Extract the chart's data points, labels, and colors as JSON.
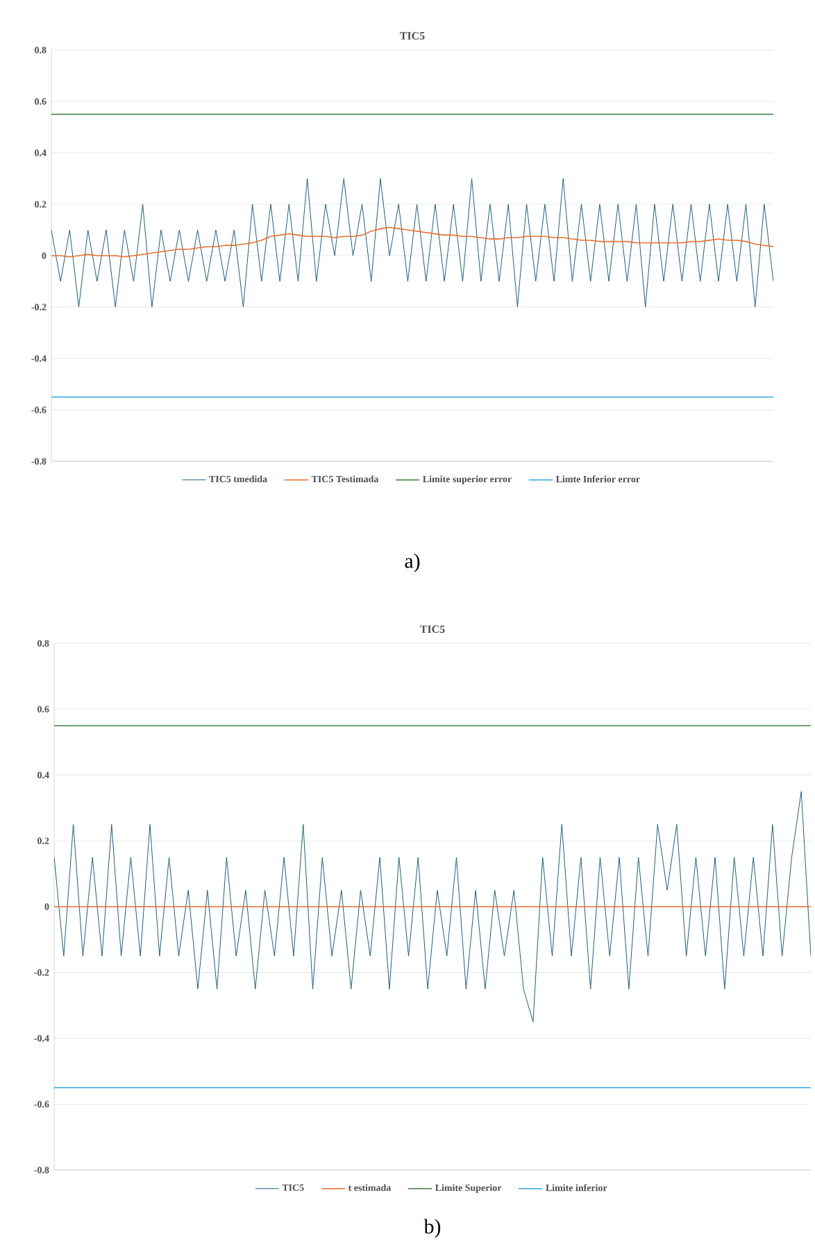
{
  "chart_data": [
    {
      "type": "line",
      "title": "TIC5",
      "categories": [
        null,
        null,
        null,
        null,
        null,
        null,
        null,
        null,
        null,
        null,
        null,
        null,
        null,
        null,
        null,
        null,
        null,
        null,
        null,
        null,
        null,
        null,
        null,
        null,
        null,
        null,
        null,
        null,
        null,
        null,
        null,
        null,
        null,
        null,
        null,
        null,
        null,
        null,
        null,
        null,
        null,
        null,
        null,
        null,
        null,
        null,
        null,
        null,
        null,
        null,
        null,
        null,
        null,
        null,
        null,
        null,
        null,
        null,
        null,
        null,
        null,
        null,
        null,
        null,
        null,
        null,
        null,
        null,
        null,
        null,
        null,
        null,
        null,
        null,
        null,
        null,
        null,
        null,
        null,
        null
      ],
      "ylim": [
        -0.8,
        0.8
      ],
      "yticks": [
        -0.8,
        -0.6,
        -0.4,
        -0.2,
        0,
        0.2,
        0.4,
        0.6,
        0.8
      ],
      "grid": "y",
      "legend": "bottom",
      "tick_labels": "y",
      "annotations": [
        "a)"
      ],
      "series": [
        {
          "name": "TIC5 tmedida",
          "color": "#1a5e84",
          "values": [
            0.1,
            -0.1,
            0.1,
            -0.2,
            0.1,
            -0.1,
            0.1,
            -0.2,
            0.1,
            -0.1,
            0.2,
            -0.2,
            0.1,
            -0.1,
            0.1,
            -0.1,
            0.1,
            -0.1,
            0.1,
            -0.1,
            0.1,
            -0.2,
            0.2,
            -0.1,
            0.2,
            -0.1,
            0.2,
            -0.1,
            0.3,
            -0.1,
            0.2,
            0.0,
            0.3,
            0.0,
            0.2,
            -0.1,
            0.3,
            0.0,
            0.2,
            -0.1,
            0.2,
            -0.1,
            0.2,
            -0.1,
            0.2,
            -0.1,
            0.3,
            -0.1,
            0.2,
            -0.1,
            0.2,
            -0.2,
            0.2,
            -0.1,
            0.2,
            -0.1,
            0.3,
            -0.1,
            0.2,
            -0.1,
            0.2,
            -0.1,
            0.2,
            -0.1,
            0.2,
            -0.2,
            0.2,
            -0.1,
            0.2,
            -0.1,
            0.2,
            -0.1,
            0.2,
            -0.1,
            0.2,
            -0.1,
            0.2,
            -0.2,
            0.2,
            -0.1
          ]
        },
        {
          "name": "TIC5 Testimada",
          "color": "#e8702a",
          "values": [
            0,
            0,
            -0.005,
            0,
            0.005,
            0,
            0,
            0,
            -0.005,
            0,
            0.005,
            0.01,
            0.015,
            0.02,
            0.025,
            0.025,
            0.03,
            0.035,
            0.035,
            0.04,
            0.04,
            0.045,
            0.05,
            0.06,
            0.075,
            0.08,
            0.085,
            0.08,
            0.075,
            0.075,
            0.075,
            0.07,
            0.075,
            0.075,
            0.08,
            0.095,
            0.105,
            0.11,
            0.105,
            0.1,
            0.095,
            0.09,
            0.085,
            0.08,
            0.08,
            0.075,
            0.075,
            0.07,
            0.065,
            0.065,
            0.07,
            0.07,
            0.075,
            0.075,
            0.075,
            0.07,
            0.07,
            0.065,
            0.06,
            0.06,
            0.055,
            0.055,
            0.055,
            0.055,
            0.05,
            0.05,
            0.05,
            0.05,
            0.05,
            0.05,
            0.055,
            0.055,
            0.06,
            0.065,
            0.06,
            0.06,
            0.055,
            0.045,
            0.04,
            0.035
          ]
        },
        {
          "name": "Limite superior error",
          "color": "#3a7d3a",
          "values": [
            0.55,
            0.55,
            0.55,
            0.55,
            0.55,
            0.55,
            0.55,
            0.55,
            0.55,
            0.55,
            0.55,
            0.55,
            0.55,
            0.55,
            0.55,
            0.55,
            0.55,
            0.55,
            0.55,
            0.55,
            0.55,
            0.55,
            0.55,
            0.55,
            0.55,
            0.55,
            0.55,
            0.55,
            0.55,
            0.55,
            0.55,
            0.55,
            0.55,
            0.55,
            0.55,
            0.55,
            0.55,
            0.55,
            0.55,
            0.55,
            0.55,
            0.55,
            0.55,
            0.55,
            0.55,
            0.55,
            0.55,
            0.55,
            0.55,
            0.55,
            0.55,
            0.55,
            0.55,
            0.55,
            0.55,
            0.55,
            0.55,
            0.55,
            0.55,
            0.55,
            0.55,
            0.55,
            0.55,
            0.55,
            0.55,
            0.55,
            0.55,
            0.55,
            0.55,
            0.55,
            0.55,
            0.55,
            0.55,
            0.55,
            0.55,
            0.55,
            0.55,
            0.55,
            0.55,
            0.55
          ]
        },
        {
          "name": "Limte Inferior error",
          "color": "#2aa8e0",
          "values": [
            -0.55,
            -0.55,
            -0.55,
            -0.55,
            -0.55,
            -0.55,
            -0.55,
            -0.55,
            -0.55,
            -0.55,
            -0.55,
            -0.55,
            -0.55,
            -0.55,
            -0.55,
            -0.55,
            -0.55,
            -0.55,
            -0.55,
            -0.55,
            -0.55,
            -0.55,
            -0.55,
            -0.55,
            -0.55,
            -0.55,
            -0.55,
            -0.55,
            -0.55,
            -0.55,
            -0.55,
            -0.55,
            -0.55,
            -0.55,
            -0.55,
            -0.55,
            -0.55,
            -0.55,
            -0.55,
            -0.55,
            -0.55,
            -0.55,
            -0.55,
            -0.55,
            -0.55,
            -0.55,
            -0.55,
            -0.55,
            -0.55,
            -0.55,
            -0.55,
            -0.55,
            -0.55,
            -0.55,
            -0.55,
            -0.55,
            -0.55,
            -0.55,
            -0.55,
            -0.55,
            -0.55,
            -0.55,
            -0.55,
            -0.55,
            -0.55,
            -0.55,
            -0.55,
            -0.55,
            -0.55,
            -0.55,
            -0.55,
            -0.55,
            -0.55,
            -0.55,
            -0.55,
            -0.55,
            -0.55,
            -0.55,
            -0.55,
            -0.55
          ]
        }
      ]
    },
    {
      "type": "line",
      "title": "TIC5",
      "categories": [
        null,
        null,
        null,
        null,
        null,
        null,
        null,
        null,
        null,
        null,
        null,
        null,
        null,
        null,
        null,
        null,
        null,
        null,
        null,
        null,
        null,
        null,
        null,
        null,
        null,
        null,
        null,
        null,
        null,
        null,
        null,
        null,
        null,
        null,
        null,
        null,
        null,
        null,
        null,
        null,
        null,
        null,
        null,
        null,
        null,
        null,
        null,
        null,
        null,
        null,
        null,
        null,
        null,
        null,
        null,
        null,
        null,
        null,
        null,
        null,
        null,
        null,
        null,
        null,
        null,
        null,
        null,
        null,
        null,
        null,
        null,
        null,
        null,
        null,
        null,
        null,
        null,
        null,
        null,
        null
      ],
      "ylim": [
        -0.8,
        0.8
      ],
      "yticks": [
        -0.8,
        -0.6,
        -0.4,
        -0.2,
        0,
        0.2,
        0.4,
        0.6,
        0.8
      ],
      "grid": "y",
      "legend": "bottom",
      "tick_labels": "y",
      "annotations": [
        "b)"
      ],
      "series": [
        {
          "name": "TIC5",
          "color": "#1a5e84",
          "values": [
            0.15,
            -0.15,
            0.25,
            -0.15,
            0.15,
            -0.15,
            0.25,
            -0.15,
            0.15,
            -0.15,
            0.25,
            -0.15,
            0.15,
            -0.15,
            0.05,
            -0.25,
            0.05,
            -0.25,
            0.15,
            -0.15,
            0.05,
            -0.25,
            0.05,
            -0.15,
            0.15,
            -0.15,
            0.25,
            -0.25,
            0.15,
            -0.15,
            0.05,
            -0.25,
            0.05,
            -0.15,
            0.15,
            -0.25,
            0.15,
            -0.15,
            0.15,
            -0.25,
            0.05,
            -0.15,
            0.15,
            -0.25,
            0.05,
            -0.25,
            0.05,
            -0.15,
            0.05,
            -0.25,
            -0.35,
            0.15,
            -0.15,
            0.25,
            -0.15,
            0.15,
            -0.25,
            0.15,
            -0.15,
            0.15,
            -0.25,
            0.15,
            -0.15,
            0.25,
            0.05,
            0.25,
            -0.15,
            0.15,
            -0.15,
            0.15,
            -0.25,
            0.15,
            -0.15,
            0.15,
            -0.15,
            0.25,
            -0.15,
            0.15,
            0.35,
            -0.15
          ]
        },
        {
          "name": "t estimada",
          "color": "#e8702a",
          "values": [
            0,
            0,
            0,
            0,
            0,
            0,
            0,
            0,
            0,
            0,
            0,
            0,
            0,
            0,
            0,
            0,
            0,
            0,
            0,
            0,
            0,
            0,
            0,
            0,
            0,
            0,
            0,
            0,
            0,
            0,
            0,
            0,
            0,
            0,
            0,
            0,
            0,
            0,
            0,
            0,
            0,
            0,
            0,
            0,
            0,
            0,
            0,
            0,
            0,
            0,
            0,
            0,
            0,
            0,
            0,
            0,
            0,
            0,
            0,
            0,
            0,
            0,
            0,
            0,
            0,
            0,
            0,
            0,
            0,
            0,
            0,
            0,
            0,
            0,
            0,
            0,
            0,
            0,
            0,
            0
          ]
        },
        {
          "name": "Limite Superior",
          "color": "#3a7d3a",
          "values": [
            0.55,
            0.55,
            0.55,
            0.55,
            0.55,
            0.55,
            0.55,
            0.55,
            0.55,
            0.55,
            0.55,
            0.55,
            0.55,
            0.55,
            0.55,
            0.55,
            0.55,
            0.55,
            0.55,
            0.55,
            0.55,
            0.55,
            0.55,
            0.55,
            0.55,
            0.55,
            0.55,
            0.55,
            0.55,
            0.55,
            0.55,
            0.55,
            0.55,
            0.55,
            0.55,
            0.55,
            0.55,
            0.55,
            0.55,
            0.55,
            0.55,
            0.55,
            0.55,
            0.55,
            0.55,
            0.55,
            0.55,
            0.55,
            0.55,
            0.55,
            0.55,
            0.55,
            0.55,
            0.55,
            0.55,
            0.55,
            0.55,
            0.55,
            0.55,
            0.55,
            0.55,
            0.55,
            0.55,
            0.55,
            0.55,
            0.55,
            0.55,
            0.55,
            0.55,
            0.55,
            0.55,
            0.55,
            0.55,
            0.55,
            0.55,
            0.55,
            0.55,
            0.55,
            0.55,
            0.55
          ]
        },
        {
          "name": "Limite inferior",
          "color": "#2aa8e0",
          "values": [
            -0.55,
            -0.55,
            -0.55,
            -0.55,
            -0.55,
            -0.55,
            -0.55,
            -0.55,
            -0.55,
            -0.55,
            -0.55,
            -0.55,
            -0.55,
            -0.55,
            -0.55,
            -0.55,
            -0.55,
            -0.55,
            -0.55,
            -0.55,
            -0.55,
            -0.55,
            -0.55,
            -0.55,
            -0.55,
            -0.55,
            -0.55,
            -0.55,
            -0.55,
            -0.55,
            -0.55,
            -0.55,
            -0.55,
            -0.55,
            -0.55,
            -0.55,
            -0.55,
            -0.55,
            -0.55,
            -0.55,
            -0.55,
            -0.55,
            -0.55,
            -0.55,
            -0.55,
            -0.55,
            -0.55,
            -0.55,
            -0.55,
            -0.55,
            -0.55,
            -0.55,
            -0.55,
            -0.55,
            -0.55,
            -0.55,
            -0.55,
            -0.55,
            -0.55,
            -0.55,
            -0.55,
            -0.55,
            -0.55,
            -0.55,
            -0.55,
            -0.55,
            -0.55,
            -0.55,
            -0.55,
            -0.55,
            -0.55,
            -0.55,
            -0.55,
            -0.55,
            -0.55,
            -0.55,
            -0.55,
            -0.55,
            -0.55,
            -0.55
          ]
        }
      ]
    }
  ]
}
